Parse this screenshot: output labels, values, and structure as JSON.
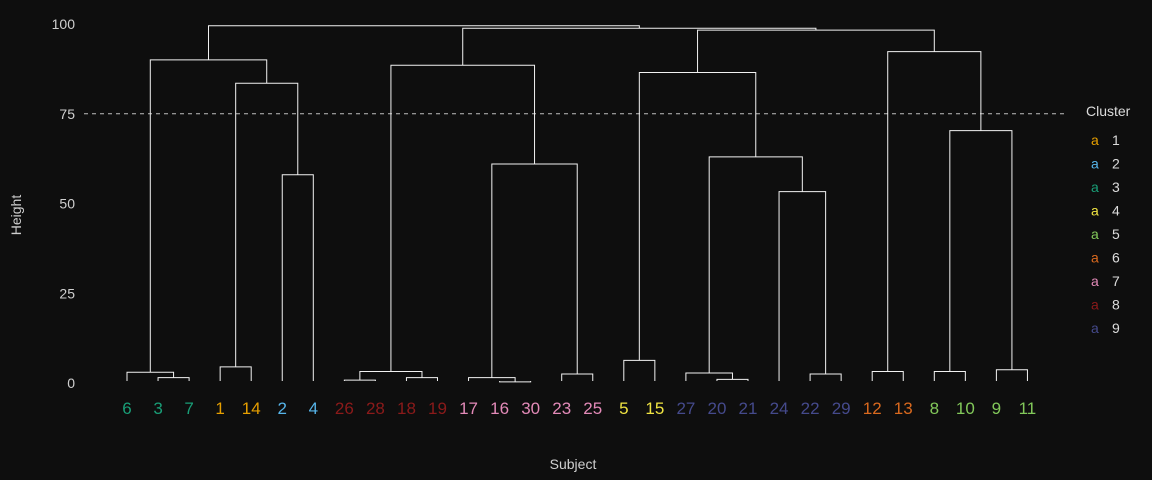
{
  "chart_data": {
    "type": "dendrogram",
    "title": "",
    "xlabel": "Subject",
    "ylabel": "Height",
    "ylim": [
      0,
      100
    ],
    "yticks": [
      0,
      25,
      50,
      75,
      100
    ],
    "cut_height": 75,
    "legend": {
      "title": "Cluster",
      "key_glyph": "a",
      "position": "right",
      "items": [
        {
          "label": "1",
          "color": "#e69f00"
        },
        {
          "label": "2",
          "color": "#56b4e9"
        },
        {
          "label": "3",
          "color": "#199e77"
        },
        {
          "label": "4",
          "color": "#f0e442"
        },
        {
          "label": "5",
          "color": "#82c85a"
        },
        {
          "label": "6",
          "color": "#d9691e"
        },
        {
          "label": "7",
          "color": "#e38ab8"
        },
        {
          "label": "8",
          "color": "#8b1a1a"
        },
        {
          "label": "9",
          "color": "#454a8c"
        }
      ]
    },
    "leaves": [
      {
        "label": "6",
        "cluster": 3
      },
      {
        "label": "3",
        "cluster": 3
      },
      {
        "label": "7",
        "cluster": 3
      },
      {
        "label": "1",
        "cluster": 1
      },
      {
        "label": "14",
        "cluster": 1
      },
      {
        "label": "2",
        "cluster": 2
      },
      {
        "label": "4",
        "cluster": 2
      },
      {
        "label": "26",
        "cluster": 8
      },
      {
        "label": "28",
        "cluster": 8
      },
      {
        "label": "18",
        "cluster": 8
      },
      {
        "label": "19",
        "cluster": 8
      },
      {
        "label": "17",
        "cluster": 7
      },
      {
        "label": "16",
        "cluster": 7
      },
      {
        "label": "30",
        "cluster": 7
      },
      {
        "label": "23",
        "cluster": 7
      },
      {
        "label": "25",
        "cluster": 7
      },
      {
        "label": "5",
        "cluster": 4
      },
      {
        "label": "15",
        "cluster": 4
      },
      {
        "label": "27",
        "cluster": 9
      },
      {
        "label": "20",
        "cluster": 9
      },
      {
        "label": "21",
        "cluster": 9
      },
      {
        "label": "24",
        "cluster": 9
      },
      {
        "label": "22",
        "cluster": 9
      },
      {
        "label": "29",
        "cluster": 9
      },
      {
        "label": "12",
        "cluster": 6
      },
      {
        "label": "13",
        "cluster": 6
      },
      {
        "label": "8",
        "cluster": 5
      },
      {
        "label": "10",
        "cluster": 5
      },
      {
        "label": "9",
        "cluster": 5
      },
      {
        "label": "11",
        "cluster": 5
      }
    ],
    "merges": [
      {
        "left": "3",
        "right": "7",
        "height": 1.5
      },
      {
        "left": "6",
        "right": "3+7",
        "height": 3
      },
      {
        "left": "1",
        "right": "14",
        "height": 4.5
      },
      {
        "left": "2",
        "right": "4",
        "height": 58
      },
      {
        "left": "1+14",
        "right": "2+4",
        "height": 83.5
      },
      {
        "left": "6+3+7",
        "right": "1+14+2+4",
        "height": 90
      },
      {
        "left": "26",
        "right": "28",
        "height": 0.8
      },
      {
        "left": "18",
        "right": "19",
        "height": 1.5
      },
      {
        "left": "26+28",
        "right": "18+19",
        "height": 3.2
      },
      {
        "left": "16",
        "right": "30",
        "height": 0.3
      },
      {
        "left": "17",
        "right": "16+30",
        "height": 1.5
      },
      {
        "left": "23",
        "right": "25",
        "height": 2.5
      },
      {
        "left": "17+16+30",
        "right": "23+25",
        "height": 61
      },
      {
        "left": "cluster-8",
        "right": "cluster-7",
        "height": 88.5
      },
      {
        "left": "5",
        "right": "15",
        "height": 6.3
      },
      {
        "left": "20",
        "right": "21",
        "height": 1
      },
      {
        "left": "27",
        "right": "20+21",
        "height": 2.8
      },
      {
        "left": "22",
        "right": "29",
        "height": 2.5
      },
      {
        "left": "24",
        "right": "22+29",
        "height": 53.3
      },
      {
        "left": "27+20+21",
        "right": "24+22+29",
        "height": 63
      },
      {
        "left": "5+15",
        "right": "cluster-9",
        "height": 86.5
      },
      {
        "left": "12",
        "right": "13",
        "height": 3.2
      },
      {
        "left": "8",
        "right": "10",
        "height": 3.2
      },
      {
        "left": "9",
        "right": "11",
        "height": 3.7
      },
      {
        "left": "8+10",
        "right": "9+11",
        "height": 70.3
      },
      {
        "left": "12+13",
        "right": "8+10+9+11",
        "height": 92.3
      },
      {
        "left": "5+15+cluster-9",
        "right": "12+13+cluster-5",
        "height": 98.3
      },
      {
        "left": "cluster-8+7",
        "right": "5+15+9+6+5",
        "height": 98.8
      },
      {
        "left": "cluster-3+1+2",
        "right": "rest",
        "height": 99.5
      }
    ]
  }
}
